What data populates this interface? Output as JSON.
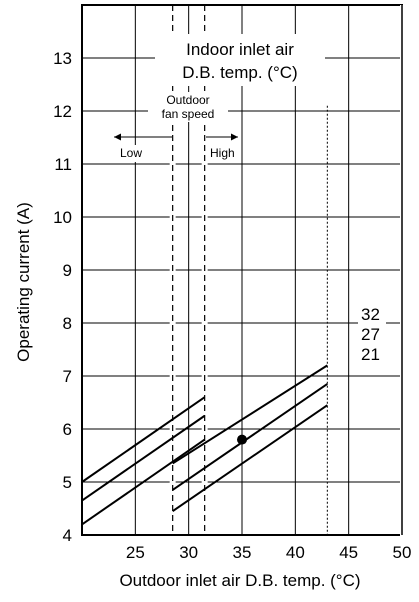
{
  "chart_data": {
    "type": "line",
    "title": "",
    "xlabel": "Outdoor inlet air D.B. temp. (°C)",
    "ylabel": "Operating current (A)",
    "xlim": [
      20,
      50
    ],
    "ylim": [
      4,
      14
    ],
    "xticks": [
      25,
      30,
      35,
      40,
      45,
      50
    ],
    "yticks": [
      4,
      5,
      6,
      7,
      8,
      9,
      10,
      11,
      12,
      13
    ],
    "grid": true,
    "legend_title": [
      "Indoor inlet air",
      "D.B. temp. (°C)"
    ],
    "fan_speed_title": [
      "Outdoor",
      "fan speed"
    ],
    "fan_low_label": "Low",
    "fan_high_label": "High",
    "fan_low_boundary": 28.5,
    "fan_high_boundary": 31.5,
    "limit_line_x": 43,
    "series": [
      {
        "name": "32",
        "segments": [
          {
            "x": [
              20,
              31.5
            ],
            "y": [
              5.0,
              6.6
            ]
          },
          {
            "x": [
              28.5,
              43
            ],
            "y": [
              5.35,
              7.2
            ]
          }
        ]
      },
      {
        "name": "27",
        "segments": [
          {
            "x": [
              20,
              31.5
            ],
            "y": [
              4.65,
              6.25
            ]
          },
          {
            "x": [
              28.5,
              43
            ],
            "y": [
              4.85,
              6.85
            ]
          }
        ]
      },
      {
        "name": "21",
        "segments": [
          {
            "x": [
              20,
              31.5
            ],
            "y": [
              4.2,
              5.8
            ]
          },
          {
            "x": [
              28.5,
              43
            ],
            "y": [
              4.45,
              6.45
            ]
          }
        ]
      }
    ],
    "marker_point": {
      "x": 35,
      "y": 5.8
    }
  }
}
